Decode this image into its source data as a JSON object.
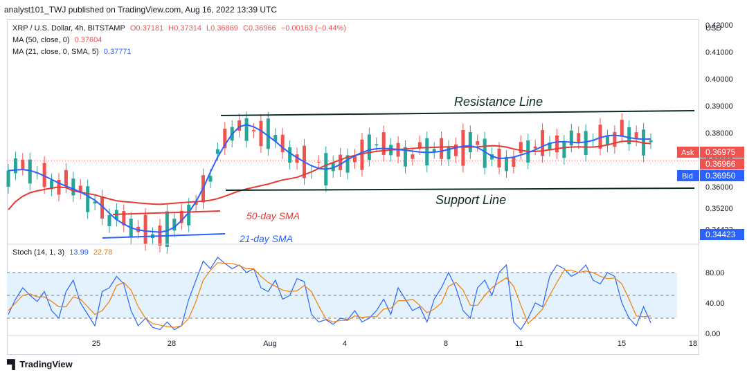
{
  "header": {
    "publish_line": "analyst101_TWJ published on TradingView.com, Aug 16, 2022 13:39 UTC"
  },
  "legend": {
    "symbol": "XRP / U.S. Dollar, 4h, BITSTAMP",
    "open": "O0.37181",
    "high": "H0.37314",
    "low": "L0.36869",
    "close": "C0.36966",
    "change": "−0.00163 (−0.44%)",
    "ma50_label": "MA (50, close, 0)",
    "ma50_value": "0.37604",
    "ma21_label": "MA (21, close, 0, SMA, 5)",
    "ma21_value": "0.37771",
    "stoch_label": "Stoch (14, 1, 3)",
    "stoch_k": "13.99",
    "stoch_d": "22.78"
  },
  "price_axis": {
    "currency": "USD",
    "ask_label": "Ask",
    "ask_value": "0.36975",
    "last_value": "0.36966",
    "bid_label": "Bid",
    "bid_value": "0.36950",
    "extra_value": "0.34423"
  },
  "annotations": {
    "resistance": "Resistance Line",
    "support": "Support Line",
    "sma50": "50-day SMA",
    "sma21": "21-day SMA"
  },
  "footer": {
    "brand": "TradingView"
  },
  "colors": {
    "up": "#26a69a",
    "down": "#ef5350",
    "ma50": "#e53935",
    "ma21": "#2962ff",
    "stoch_k": "#2962ff",
    "stoch_d": "#f57c00",
    "stoch_band": "#e3f2fd"
  },
  "chart_data": [
    {
      "type": "candlestick",
      "title": "XRP / U.S. Dollar, 4h, BITSTAMP",
      "ylabel": "USD",
      "ylim": [
        0.3395,
        0.4215
      ],
      "y_ticks": [
        "0.42000",
        "0.41000",
        "0.40000",
        "0.39000",
        "0.38000",
        "0.37000",
        "0.36000",
        "0.35200",
        "0.34423"
      ],
      "x_ticks": [
        "25",
        "28",
        "Aug",
        "4",
        "8",
        "11",
        "15",
        "18"
      ],
      "series": [
        {
          "name": "MA (50, close, 0)",
          "values": [
            0.3515,
            0.3545,
            0.3565,
            0.3578,
            0.3585,
            0.359,
            0.3595,
            0.3599,
            0.3597,
            0.3585,
            0.358,
            0.3575,
            0.357,
            0.3562,
            0.3555,
            0.3548,
            0.3545,
            0.3543,
            0.354,
            0.3538,
            0.3536,
            0.3535,
            0.3537,
            0.3539,
            0.3541,
            0.3543,
            0.3545,
            0.3547,
            0.355,
            0.3556,
            0.3565,
            0.3575,
            0.3585,
            0.3592,
            0.3598,
            0.3604,
            0.361,
            0.3618,
            0.3625,
            0.363,
            0.3635,
            0.3645,
            0.3655,
            0.3668,
            0.368,
            0.369,
            0.37,
            0.371,
            0.3716,
            0.3722,
            0.3727,
            0.3731,
            0.3734,
            0.3736,
            0.3738,
            0.374,
            0.3742,
            0.3744,
            0.3745,
            0.3746,
            0.3747,
            0.3748,
            0.3748,
            0.3747,
            0.3747,
            0.3748,
            0.375,
            0.3752,
            0.3751,
            0.3747,
            0.374,
            0.3735,
            0.3731,
            0.3731,
            0.3733,
            0.3737,
            0.3741,
            0.3745,
            0.3747,
            0.3748,
            0.3747,
            0.3747,
            0.375,
            0.3755,
            0.3762,
            0.3768,
            0.377,
            0.3768,
            0.3762,
            0.376
          ]
        },
        {
          "name": "MA (21, close, 0, SMA, 5)",
          "values": [
            0.366,
            0.3662,
            0.3664,
            0.366,
            0.3652,
            0.364,
            0.3627,
            0.3614,
            0.3602,
            0.3592,
            0.358,
            0.3566,
            0.355,
            0.3528,
            0.3502,
            0.3478,
            0.3462,
            0.3448,
            0.344,
            0.3436,
            0.3434,
            0.3432,
            0.3437,
            0.345,
            0.3475,
            0.3505,
            0.3545,
            0.3595,
            0.3655,
            0.371,
            0.3755,
            0.3795,
            0.3822,
            0.383,
            0.3822,
            0.3808,
            0.3788,
            0.3768,
            0.3745,
            0.3725,
            0.3708,
            0.3692,
            0.3678,
            0.3668,
            0.3665,
            0.367,
            0.3683,
            0.37,
            0.3715,
            0.3727,
            0.3736,
            0.3741,
            0.3742,
            0.3741,
            0.3738,
            0.3735,
            0.3732,
            0.3729,
            0.3727,
            0.3728,
            0.3732,
            0.3738,
            0.3745,
            0.375,
            0.3752,
            0.3745,
            0.373,
            0.3713,
            0.3705,
            0.3706,
            0.371,
            0.3718,
            0.3726,
            0.3737,
            0.375,
            0.3761,
            0.3766,
            0.3767,
            0.3765,
            0.3763,
            0.3766,
            0.3772,
            0.3782,
            0.3789,
            0.3791,
            0.3788,
            0.3782,
            0.3778,
            0.3776,
            0.3777
          ]
        }
      ],
      "annotations": [
        "Resistance Line",
        "Support Line",
        "50-day SMA",
        "21-day SMA"
      ]
    },
    {
      "type": "line",
      "title": "Stoch (14, 1, 3)",
      "ylim": [
        0,
        100
      ],
      "y_ticks": [
        "80.00",
        "40.00",
        "0.00"
      ],
      "band": [
        20,
        80
      ],
      "series": [
        {
          "name": "%K",
          "values": [
            25,
            45,
            60,
            50,
            42,
            55,
            30,
            20,
            55,
            70,
            40,
            25,
            10,
            55,
            60,
            75,
            65,
            30,
            10,
            20,
            8,
            5,
            15,
            5,
            10,
            45,
            70,
            95,
            85,
            100,
            92,
            85,
            90,
            80,
            85,
            60,
            55,
            70,
            45,
            50,
            72,
            68,
            25,
            15,
            18,
            12,
            20,
            18,
            30,
            15,
            20,
            30,
            45,
            25,
            60,
            45,
            30,
            35,
            15,
            45,
            60,
            80,
            60,
            30,
            20,
            60,
            70,
            50,
            80,
            90,
            15,
            5,
            20,
            40,
            35,
            75,
            90,
            85,
            75,
            80,
            90,
            70,
            65,
            80,
            75,
            40,
            20,
            10,
            35,
            14
          ]
        },
        {
          "name": "%D",
          "values": [
            30,
            40,
            50,
            52,
            48,
            48,
            42,
            35,
            35,
            48,
            45,
            35,
            25,
            30,
            42,
            63,
            67,
            57,
            35,
            20,
            13,
            11,
            9,
            8,
            10,
            20,
            42,
            70,
            83,
            93,
            92,
            92,
            89,
            85,
            85,
            75,
            67,
            62,
            57,
            55,
            56,
            63,
            55,
            36,
            19,
            15,
            17,
            17,
            23,
            21,
            22,
            22,
            32,
            33,
            43,
            43,
            45,
            37,
            27,
            32,
            40,
            62,
            67,
            57,
            37,
            37,
            50,
            60,
            67,
            73,
            62,
            37,
            13,
            22,
            32,
            50,
            67,
            83,
            83,
            80,
            82,
            80,
            75,
            72,
            73,
            65,
            45,
            23,
            22,
            23
          ]
        }
      ]
    }
  ]
}
